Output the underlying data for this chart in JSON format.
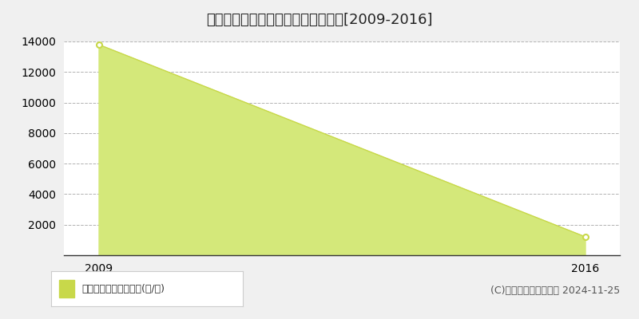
{
  "title": "国頭郡本部町伊野波　林地価格推移[2009-2016]",
  "x": [
    2009,
    2016
  ],
  "y": [
    13800,
    1210
  ],
  "xlim": [
    2008.5,
    2016.5
  ],
  "ylim": [
    0,
    14000
  ],
  "yticks": [
    0,
    2000,
    4000,
    6000,
    8000,
    10000,
    12000,
    14000
  ],
  "xticks": [
    2009,
    2016
  ],
  "line_color": "#c8d84a",
  "fill_color": "#d4e87a",
  "fill_alpha": 1.0,
  "legend_label": "林地価格　平均坪単価(円/坪)",
  "legend_marker_color": "#c8d84a",
  "copyright_text": "(C)土地価格ドットコム 2024-11-25",
  "background_color": "#f0f0f0",
  "plot_background_color": "#ffffff",
  "grid_color": "#aaaaaa",
  "grid_linestyle": "--",
  "title_fontsize": 13,
  "axis_fontsize": 10,
  "copyright_fontsize": 9,
  "legend_fontsize": 9
}
